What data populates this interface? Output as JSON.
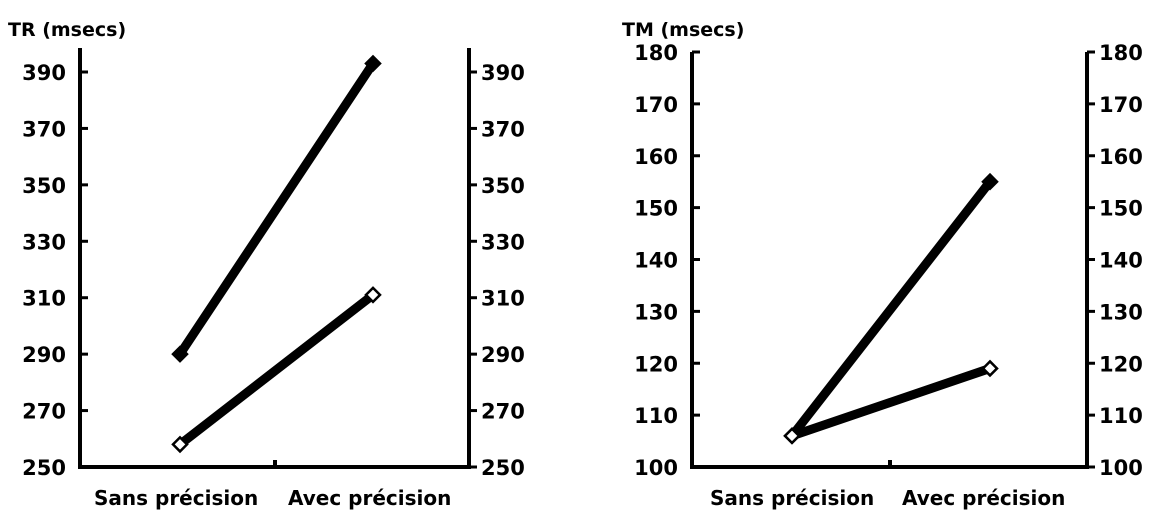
{
  "chart_data": [
    {
      "type": "line",
      "ylabel": "TR (msecs)",
      "categories": [
        "Sans précision",
        "Avec précision"
      ],
      "ylim": [
        250,
        400
      ],
      "yticks": [
        250,
        270,
        290,
        310,
        330,
        350,
        370,
        390
      ],
      "grid": false,
      "legend": "none",
      "series": [
        {
          "marker": "filled-diamond",
          "values": [
            290,
            393
          ]
        },
        {
          "marker": "open-diamond",
          "values": [
            258,
            311
          ]
        }
      ]
    },
    {
      "type": "line",
      "ylabel": "TM (msecs)",
      "categories": [
        "Sans précision",
        "Avec précision"
      ],
      "ylim": [
        100,
        180
      ],
      "yticks": [
        100,
        110,
        120,
        130,
        140,
        150,
        160,
        170,
        180
      ],
      "grid": false,
      "legend": "none",
      "series": [
        {
          "marker": "filled-diamond",
          "values": [
            106,
            155
          ]
        },
        {
          "marker": "open-diamond",
          "values": [
            106,
            119
          ]
        }
      ]
    }
  ],
  "colors": {
    "ink": "#000000",
    "background": "#ffffff"
  }
}
